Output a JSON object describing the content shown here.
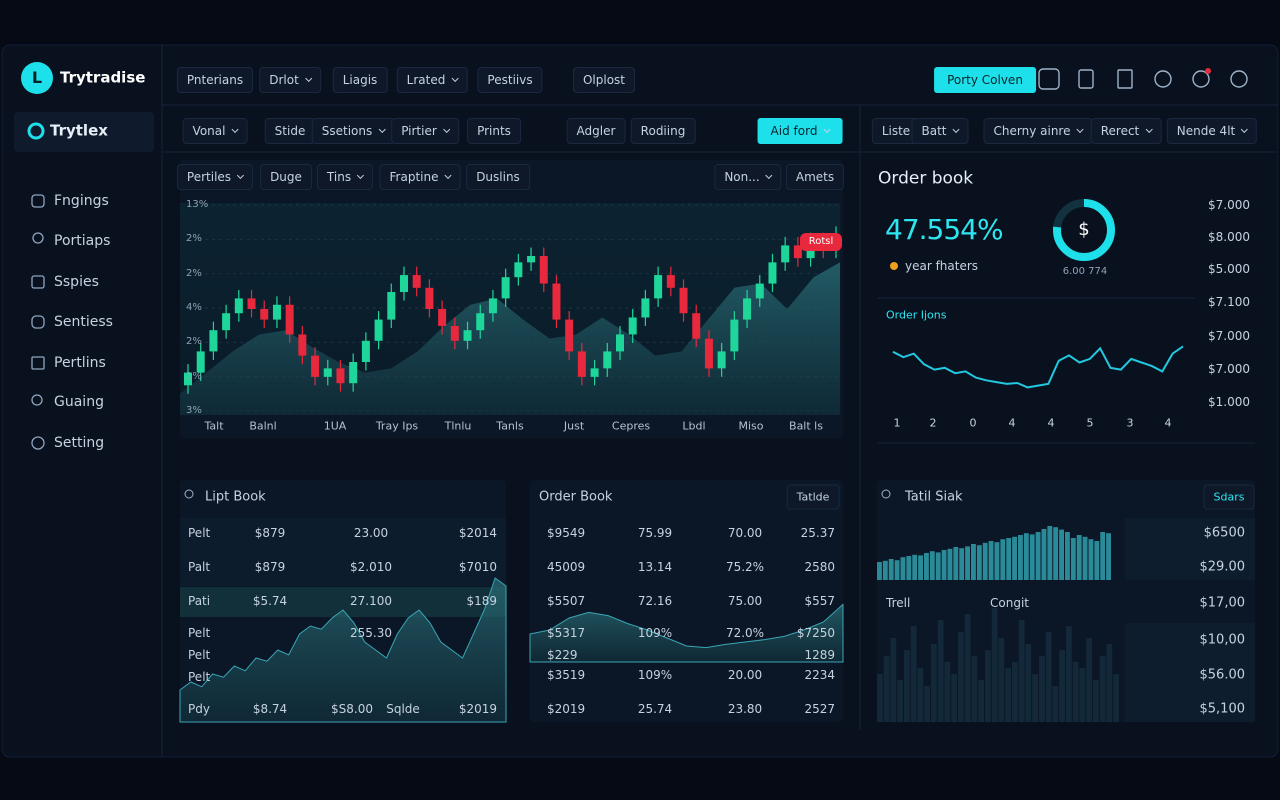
{
  "app": {
    "logo": "L",
    "name": "Trytradise"
  },
  "workspace": "Trytlex",
  "nav": [
    "Fngings",
    "Portiaps",
    "Sspies",
    "Sentiess",
    "Pertlins",
    "Guaing",
    "Setting"
  ],
  "top_menu": [
    "Pnterians",
    "Drlot",
    "Liagis",
    "Lrated",
    "Pestiivs",
    "Olplost"
  ],
  "top_button": "Porty Colven",
  "toolbar": [
    "Vonal",
    "Stide",
    "Ssetions",
    "Pirtier",
    "Prints",
    "Adgler",
    "Rodiing"
  ],
  "toolbar_button": "Aid ford",
  "right_toolbar": [
    "Liste",
    "Batt",
    "Cherny ainre",
    "Rerect",
    "Nende 4lt"
  ],
  "chart_toolbar": [
    "Pertiles",
    "Duge",
    "Tins",
    "Fraptine",
    "Duslins",
    "Non...",
    "Amets"
  ],
  "price_chart": {
    "type": "candlestick",
    "badge": "Rotsl",
    "ylim": [
      0,
      100
    ],
    "y_labels": [
      "13%",
      "2%",
      "2%",
      "4%",
      "2%",
      "1%",
      "3%"
    ],
    "x_labels": [
      "Talt",
      "Balnl",
      "1UA",
      "Tray Ips",
      "Tlnlu",
      "Tanls",
      "Just",
      "Cepres",
      "Lbdl",
      "Miso",
      "Balt ls"
    ],
    "ohlc": [
      [
        14,
        24,
        10,
        20
      ],
      [
        20,
        34,
        16,
        30
      ],
      [
        30,
        44,
        26,
        40
      ],
      [
        40,
        52,
        36,
        48
      ],
      [
        48,
        59,
        44,
        55
      ],
      [
        55,
        59,
        46,
        50
      ],
      [
        50,
        54,
        41,
        45
      ],
      [
        45,
        56,
        41,
        52
      ],
      [
        52,
        56,
        34,
        38
      ],
      [
        38,
        42,
        24,
        28
      ],
      [
        28,
        32,
        14,
        18
      ],
      [
        18,
        26,
        14,
        22
      ],
      [
        22,
        26,
        11,
        15
      ],
      [
        15,
        29,
        11,
        25
      ],
      [
        25,
        39,
        21,
        35
      ],
      [
        35,
        49,
        31,
        45
      ],
      [
        45,
        62,
        41,
        58
      ],
      [
        58,
        70,
        54,
        66
      ],
      [
        66,
        70,
        56,
        60
      ],
      [
        60,
        64,
        46,
        50
      ],
      [
        50,
        54,
        38,
        42
      ],
      [
        42,
        46,
        31,
        35
      ],
      [
        35,
        44,
        31,
        40
      ],
      [
        40,
        52,
        36,
        48
      ],
      [
        48,
        59,
        44,
        55
      ],
      [
        55,
        69,
        51,
        65
      ],
      [
        65,
        76,
        61,
        72
      ],
      [
        72,
        79,
        68,
        75
      ],
      [
        75,
        79,
        58,
        62
      ],
      [
        62,
        66,
        41,
        45
      ],
      [
        45,
        49,
        26,
        30
      ],
      [
        30,
        34,
        14,
        18
      ],
      [
        18,
        26,
        14,
        22
      ],
      [
        22,
        34,
        18,
        30
      ],
      [
        30,
        42,
        26,
        38
      ],
      [
        38,
        50,
        34,
        46
      ],
      [
        46,
        59,
        42,
        55
      ],
      [
        55,
        70,
        51,
        66
      ],
      [
        66,
        70,
        56,
        60
      ],
      [
        60,
        64,
        44,
        48
      ],
      [
        48,
        52,
        32,
        36
      ],
      [
        36,
        40,
        18,
        22
      ],
      [
        22,
        34,
        18,
        30
      ],
      [
        30,
        49,
        26,
        45
      ],
      [
        45,
        59,
        41,
        55
      ],
      [
        55,
        66,
        51,
        62
      ],
      [
        62,
        76,
        58,
        72
      ],
      [
        72,
        84,
        68,
        80
      ],
      [
        80,
        84,
        70,
        74
      ],
      [
        74,
        86,
        70,
        82
      ],
      [
        82,
        86,
        74,
        78
      ],
      [
        78,
        89,
        74,
        85
      ]
    ],
    "area": [
      10,
      20,
      30,
      38,
      40,
      32,
      25,
      20,
      22,
      30,
      42,
      52,
      55,
      45,
      36,
      38,
      46,
      38,
      28,
      30,
      45,
      60,
      62,
      50,
      65,
      72
    ]
  },
  "summary": {
    "type": "line",
    "title": "Order book",
    "value": "47.554%",
    "icon": "$",
    "legend": "year fhaters",
    "note": "6.00 774",
    "axis_labels": [
      "$7.000",
      "$8.000",
      "$5.000",
      "$7.100",
      "$7.000",
      "$7.000",
      "$1.000"
    ],
    "spark_title": "Order Ijons",
    "x_labels": [
      "1",
      "2",
      "0",
      "4",
      "4",
      "5",
      "3",
      "4"
    ],
    "ylim": [
      0,
      100
    ],
    "values": [
      62,
      56,
      60,
      48,
      42,
      44,
      38,
      40,
      33,
      30,
      28,
      26,
      27,
      22,
      24,
      26,
      52,
      58,
      50,
      54,
      66,
      44,
      42,
      54,
      50,
      46,
      40,
      60,
      68
    ]
  },
  "panels": [
    {
      "title": "Lipt Book",
      "area": [
        20,
        25,
        22,
        30,
        28,
        35,
        32,
        40,
        38,
        45,
        42,
        55,
        60,
        58,
        65,
        70,
        62,
        50,
        45,
        40,
        55,
        65,
        70,
        62,
        50,
        45,
        40,
        55,
        70,
        90,
        85
      ],
      "rows": [
        [
          "Pelt",
          "$879",
          "23.00",
          "$2014"
        ],
        [
          "Palt",
          "$879",
          "$2.010",
          "$7010"
        ],
        [
          "Pati",
          "$5.74",
          "27.100",
          "$189"
        ],
        [
          "Pelt",
          null,
          "255.30"
        ],
        [
          "Pelt"
        ],
        [
          "Pelt"
        ],
        [
          "Pdy",
          "$8.74",
          "$S8.00",
          "Sqlde",
          "$2019"
        ]
      ]
    },
    {
      "title": "Order Book",
      "button": "Tatlde",
      "area": [
        35,
        40,
        55,
        62,
        58,
        48,
        40,
        30,
        20,
        18,
        22,
        25,
        28,
        32,
        40,
        50,
        72
      ],
      "rows": [
        [
          "$9549",
          "75.99",
          "70.00",
          "25.37"
        ],
        [
          "45009",
          "13.14",
          "75.2%",
          "2580"
        ],
        [
          "$5507",
          "72.16",
          "75.00",
          "$557"
        ],
        [
          "$5317",
          "109%",
          "72.0%",
          "$7250"
        ],
        [
          "$229",
          null,
          null,
          "1289"
        ],
        [
          "$3519",
          "109%",
          "20.00",
          "2234"
        ],
        [
          "$2019",
          "25.74",
          "23.80",
          "2527"
        ]
      ]
    },
    {
      "title": "Tatil Siak",
      "button": "Sdars",
      "labels": [
        "Trell",
        "Congit"
      ],
      "values": [
        "$6500",
        "$29.00",
        "$17,00",
        "$10,00",
        "$56.00",
        "$5,100"
      ],
      "bars_top": [
        30,
        32,
        35,
        33,
        38,
        40,
        42,
        41,
        45,
        48,
        46,
        50,
        52,
        55,
        53,
        56,
        60,
        58,
        62,
        65,
        63,
        68,
        70,
        72,
        75,
        78,
        76,
        80,
        85,
        90,
        88,
        84,
        80,
        70,
        75,
        72,
        68,
        65,
        80,
        78
      ],
      "bars_bottom": [
        40,
        55,
        70,
        35,
        60,
        80,
        45,
        30,
        65,
        85,
        50,
        40,
        75,
        90,
        55,
        35,
        60,
        95,
        70,
        45,
        50,
        85,
        65,
        40,
        55,
        75,
        30,
        60,
        80,
        50,
        45,
        70,
        35,
        55,
        65,
        40
      ]
    }
  ]
}
